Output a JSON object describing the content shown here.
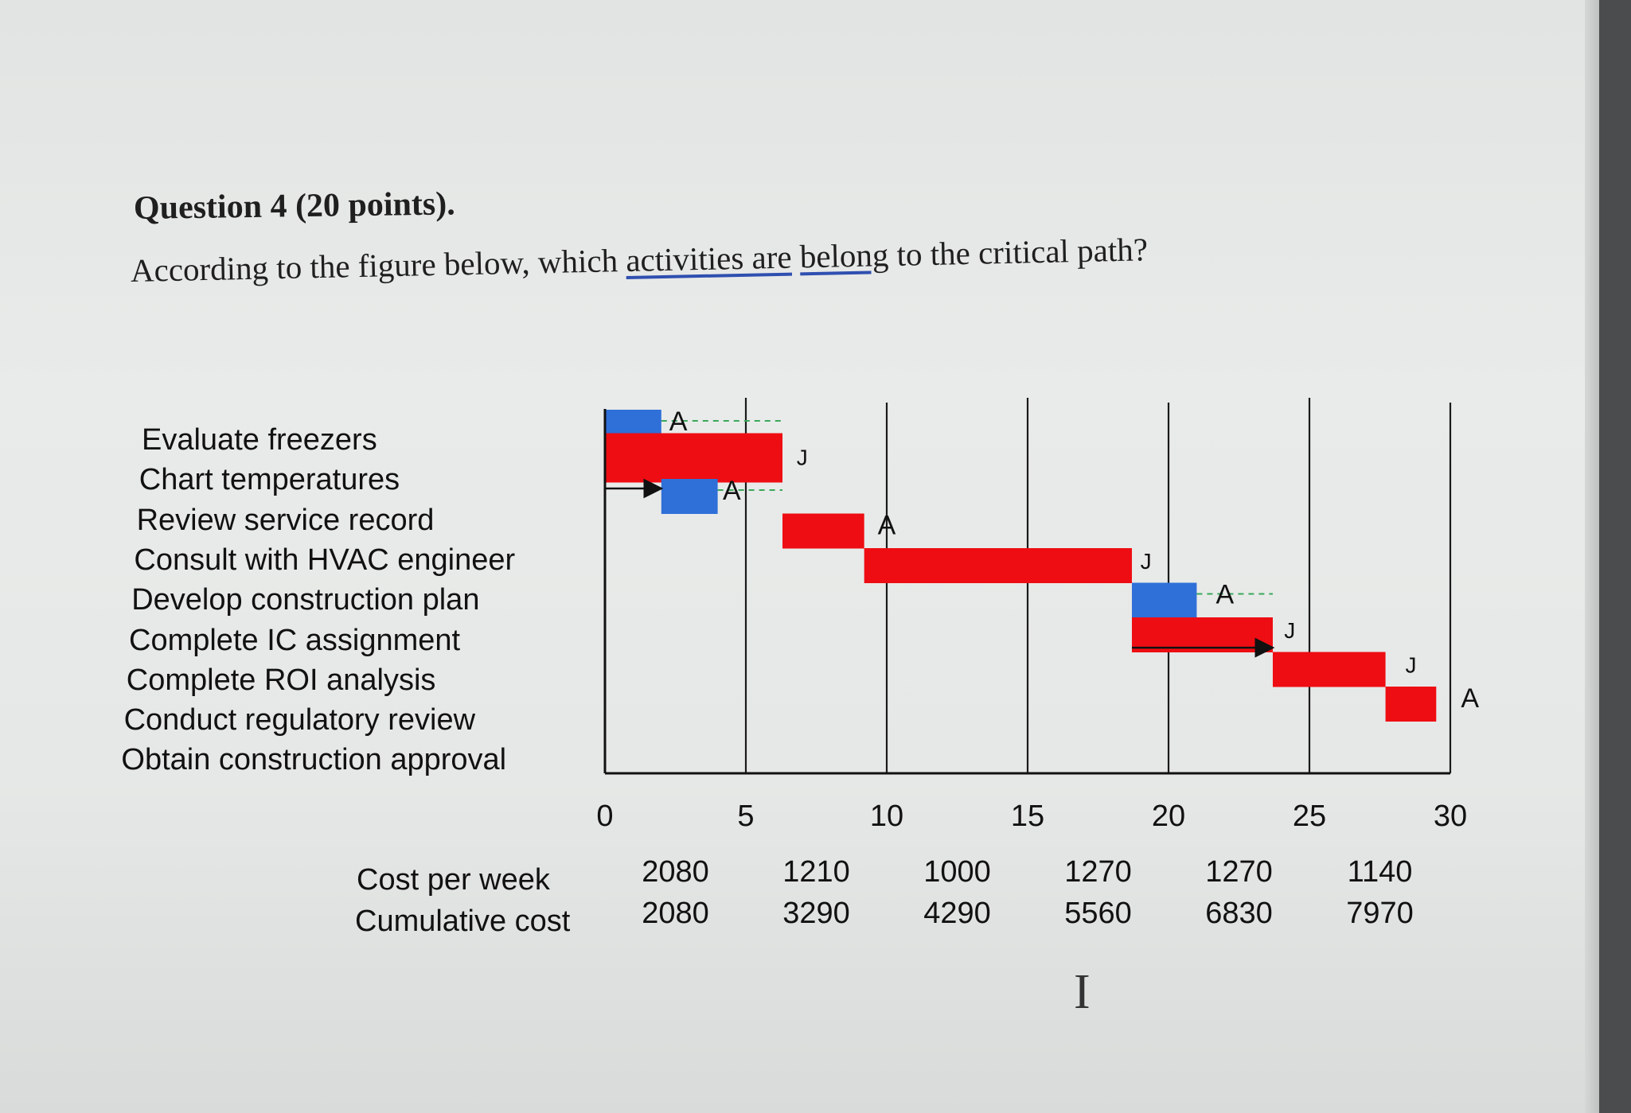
{
  "question": {
    "title": "Question 4 (20 points).",
    "text_pre": "According to the figure below, which ",
    "text_u1": "activities are",
    "text_mid": " ",
    "text_u2": "belong",
    "text_post": " to the critical path?"
  },
  "chart_data": {
    "type": "bar",
    "subtype": "gantt",
    "xlim": [
      0,
      30
    ],
    "x_ticks": [
      0,
      5,
      10,
      15,
      20,
      25,
      30
    ],
    "activities": [
      "Evaluate freezers",
      "Chart temperatures",
      "Review service record",
      "Consult with HVAC engineer",
      "Develop construction plan",
      "Complete IC assignment",
      "Complete ROI analysis",
      "Conduct regulatory review",
      "Obtain construction approval"
    ],
    "tasks": [
      {
        "row": 0,
        "start": 0,
        "end": 2,
        "color": "#2f6fd8",
        "critical": false
      },
      {
        "row": 1,
        "start": 0,
        "end": 6.3,
        "color": "#ee0d12",
        "critical": true
      },
      {
        "row": 2,
        "start": 2,
        "end": 4,
        "color": "#2f6fd8",
        "critical": false
      },
      {
        "row": 3,
        "start": 6.3,
        "end": 9.2,
        "color": "#ee0d12",
        "critical": true
      },
      {
        "row": 4,
        "start": 9.2,
        "end": 18.7,
        "color": "#ee0d12",
        "critical": true
      },
      {
        "row": 5,
        "start": 18.7,
        "end": 21,
        "color": "#2f6fd8",
        "critical": false
      },
      {
        "row": 6,
        "start": 18.7,
        "end": 23.7,
        "color": "#ee0d12",
        "critical": true
      },
      {
        "row": 7,
        "start": 23.7,
        "end": 27.7,
        "color": "#ee0d12",
        "critical": true
      },
      {
        "row": 8,
        "start": 27.7,
        "end": 29.5,
        "color": "#ee0d12",
        "critical": true
      }
    ],
    "marker_labels": [
      {
        "text": "A",
        "x": 2.6,
        "row": 0
      },
      {
        "text": "J",
        "x": 7,
        "row": 1
      },
      {
        "text": "A",
        "x": 4.5,
        "row": 2
      },
      {
        "text": "A",
        "x": 10,
        "row": 3
      },
      {
        "text": "J",
        "x": 19.2,
        "row": 4
      },
      {
        "text": "A",
        "x": 22,
        "row": 5
      },
      {
        "text": "J",
        "x": 24.3,
        "row": 6
      },
      {
        "text": "J",
        "x": 28.6,
        "row": 7
      },
      {
        "text": "A",
        "x": 30.7,
        "row": 8
      }
    ],
    "slack_lines": [
      {
        "row": 0,
        "from": 2,
        "to": 6.3
      },
      {
        "row": 2,
        "from": 4,
        "to": 6.3
      },
      {
        "row": 5,
        "from": 21,
        "to": 23.7
      }
    ],
    "arrows": [
      {
        "row": 2,
        "from": 0,
        "to": 2
      },
      {
        "row": 6.6,
        "from": 18.7,
        "to": 23.7
      }
    ],
    "cost": {
      "label_per_week": "Cost per week",
      "label_cumulative": "Cumulative cost",
      "per_week": [
        2080,
        1210,
        1000,
        1270,
        1270,
        1140
      ],
      "cumulative": [
        2080,
        3290,
        4290,
        5560,
        6830,
        7970
      ]
    }
  }
}
